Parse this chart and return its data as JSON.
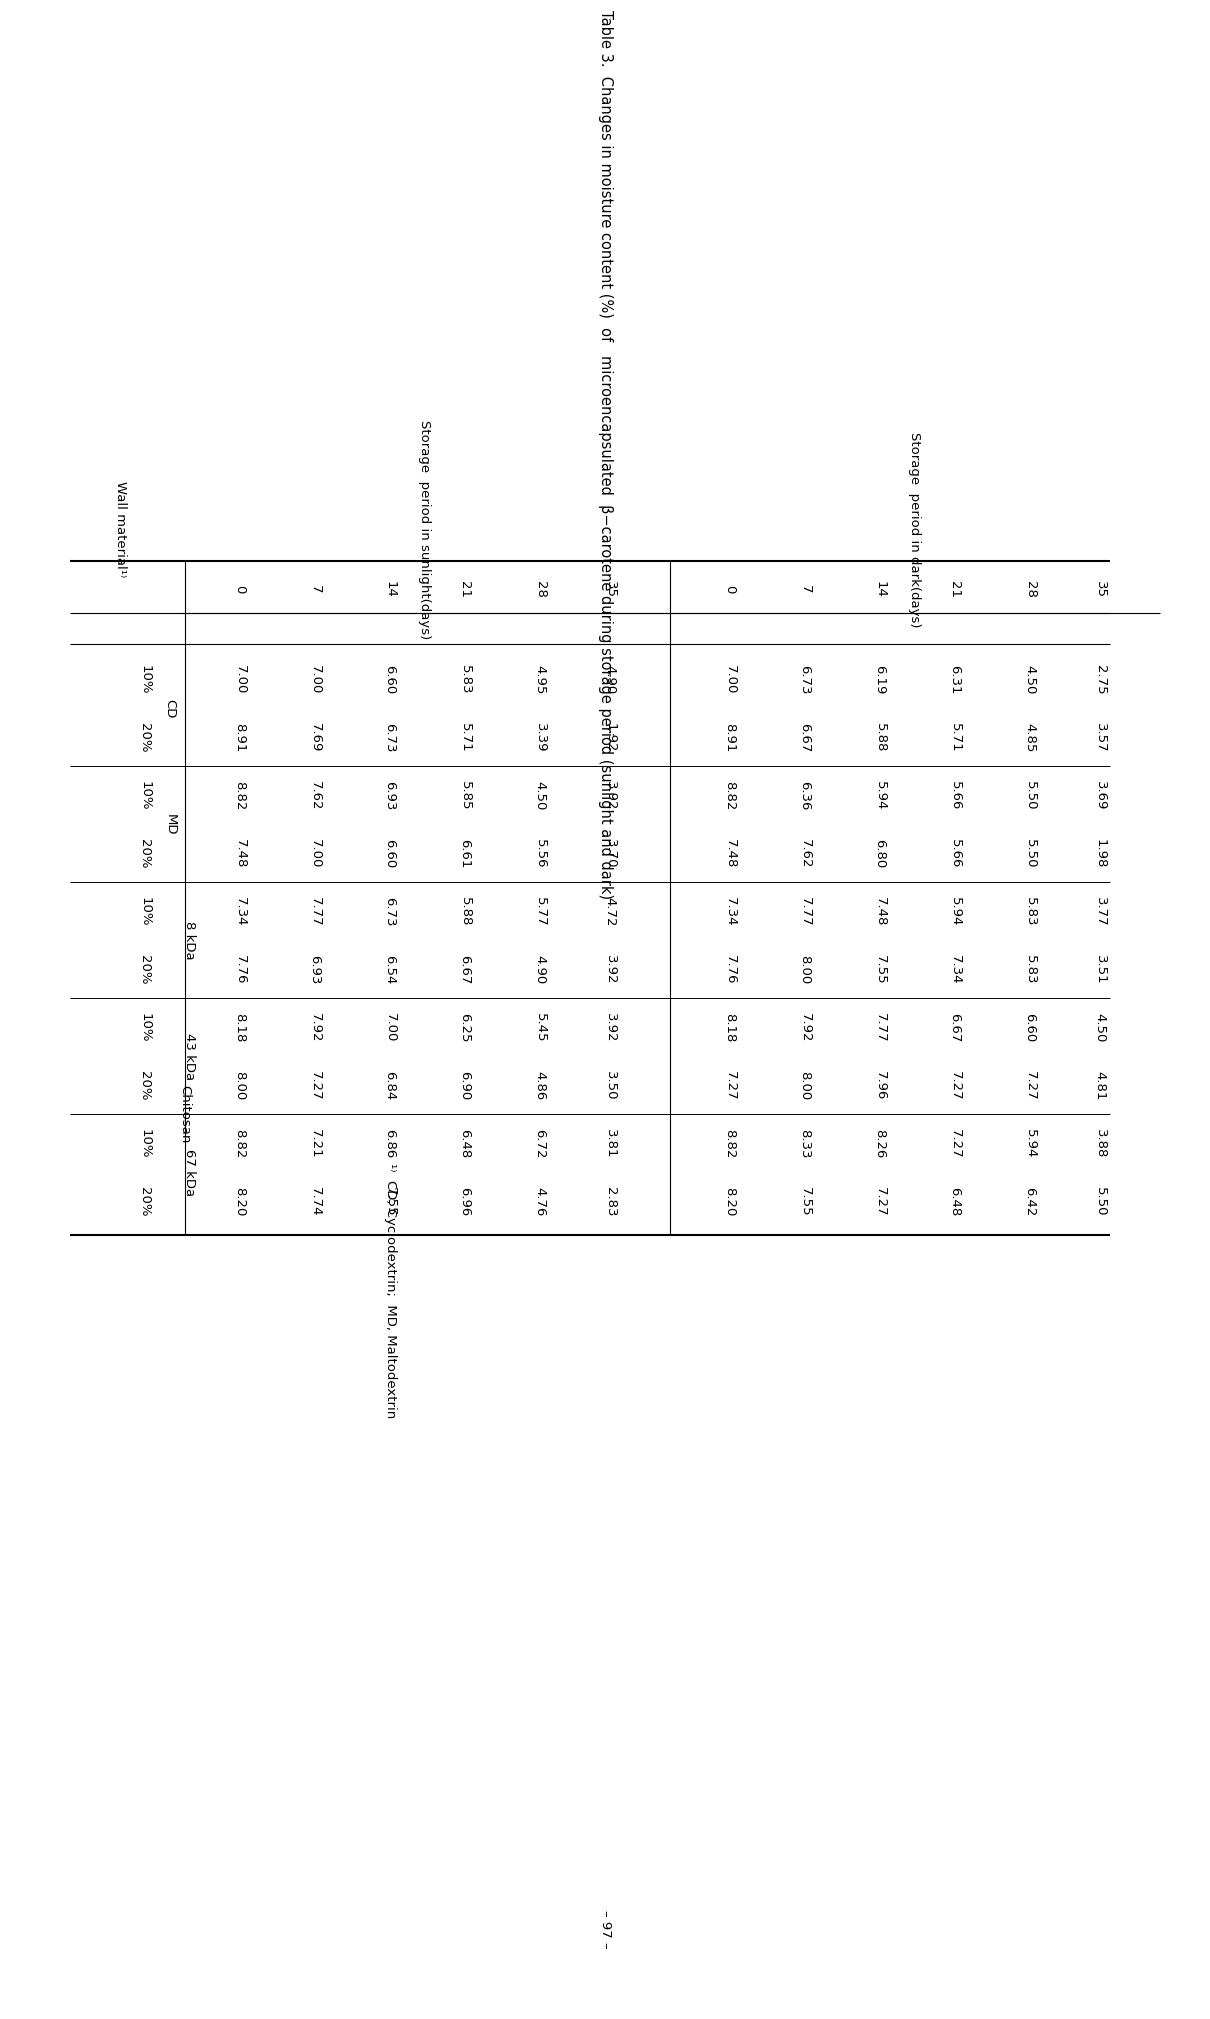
{
  "title": "Table 3.  Changes in moisture content (%)  of   microencapsulated  β−carotene during storage period (sunlight and dark)",
  "footnote": "¹⁾  CD, Cyclodextrin;  MD, Maltodextrin",
  "page_number": "– 97 –",
  "days": [
    "0",
    "7",
    "14",
    "21",
    "28",
    "35"
  ],
  "sunlight_data": [
    [
      7.0,
      7.0,
      6.6,
      5.83,
      4.95,
      4.9
    ],
    [
      8.91,
      7.69,
      6.73,
      5.71,
      3.39,
      1.92
    ],
    [
      8.82,
      7.62,
      6.93,
      5.85,
      4.5,
      3.92
    ],
    [
      7.48,
      7.0,
      6.6,
      6.61,
      5.56,
      3.7
    ],
    [
      7.34,
      7.77,
      6.73,
      5.88,
      5.77,
      4.72
    ],
    [
      7.76,
      6.93,
      6.54,
      6.67,
      4.9,
      3.92
    ],
    [
      8.18,
      7.92,
      7.0,
      6.25,
      5.45,
      3.92
    ],
    [
      8.0,
      7.27,
      6.84,
      6.9,
      4.86,
      3.5
    ],
    [
      8.82,
      7.21,
      6.86,
      6.48,
      6.72,
      3.81
    ],
    [
      8.2,
      7.74,
      7.55,
      6.96,
      4.76,
      2.83
    ]
  ],
  "dark_data": [
    [
      7.0,
      6.73,
      6.19,
      6.31,
      4.5,
      2.75
    ],
    [
      8.91,
      6.67,
      5.88,
      5.71,
      4.85,
      3.57
    ],
    [
      8.82,
      6.36,
      5.94,
      5.66,
      5.5,
      3.69
    ],
    [
      7.48,
      7.62,
      6.8,
      5.66,
      5.5,
      1.98
    ],
    [
      7.34,
      7.77,
      7.48,
      5.94,
      5.83,
      3.77
    ],
    [
      7.76,
      8.0,
      7.55,
      7.34,
      5.83,
      3.51
    ],
    [
      8.18,
      7.92,
      7.77,
      6.67,
      6.6,
      4.5
    ],
    [
      7.27,
      8.0,
      7.96,
      7.27,
      7.27,
      4.81
    ],
    [
      8.82,
      8.33,
      8.26,
      7.27,
      5.94,
      3.88
    ],
    [
      8.2,
      7.55,
      7.27,
      6.48,
      6.42,
      5.5
    ]
  ]
}
